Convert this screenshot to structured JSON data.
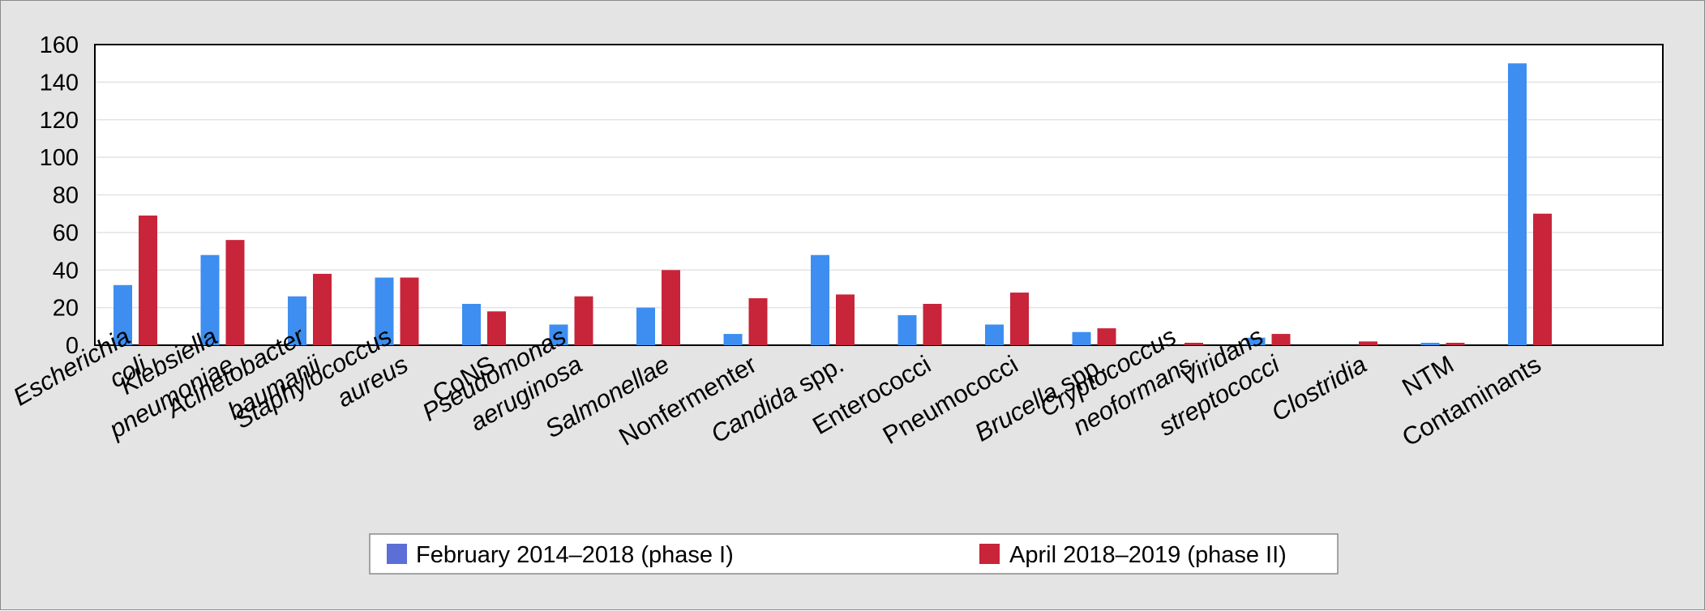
{
  "chart_data": {
    "type": "bar",
    "categories": [
      {
        "lines": [
          {
            "parts": [
              {
                "text": "Escherichia",
                "italic": true
              }
            ]
          },
          {
            "parts": [
              {
                "text": "coli",
                "italic": true
              }
            ]
          }
        ]
      },
      {
        "lines": [
          {
            "parts": [
              {
                "text": "Klebsiella",
                "italic": true
              }
            ]
          },
          {
            "parts": [
              {
                "text": "pneumoniae",
                "italic": true
              }
            ]
          }
        ]
      },
      {
        "lines": [
          {
            "parts": [
              {
                "text": "Acinetobacter",
                "italic": true
              }
            ]
          },
          {
            "parts": [
              {
                "text": "baumanii",
                "italic": true
              }
            ]
          }
        ]
      },
      {
        "lines": [
          {
            "parts": [
              {
                "text": "Staphylococcus",
                "italic": true
              }
            ]
          },
          {
            "parts": [
              {
                "text": "aureus",
                "italic": true
              }
            ]
          }
        ]
      },
      {
        "lines": [
          {
            "parts": [
              {
                "text": "CoNS",
                "italic": false
              }
            ]
          }
        ]
      },
      {
        "lines": [
          {
            "parts": [
              {
                "text": "Pseudomonas",
                "italic": true
              }
            ]
          },
          {
            "parts": [
              {
                "text": "aeruginosa",
                "italic": true
              }
            ]
          }
        ]
      },
      {
        "lines": [
          {
            "parts": [
              {
                "text": "Salmonellae",
                "italic": true
              }
            ]
          }
        ]
      },
      {
        "lines": [
          {
            "parts": [
              {
                "text": "Nonfermenter",
                "italic": false
              }
            ]
          }
        ]
      },
      {
        "lines": [
          {
            "parts": [
              {
                "text": "Candida",
                "italic": true
              },
              {
                "text": " spp.",
                "italic": false
              }
            ]
          }
        ]
      },
      {
        "lines": [
          {
            "parts": [
              {
                "text": "Enterococci",
                "italic": false
              }
            ]
          }
        ]
      },
      {
        "lines": [
          {
            "parts": [
              {
                "text": "Pneumococci",
                "italic": false
              }
            ]
          }
        ]
      },
      {
        "lines": [
          {
            "parts": [
              {
                "text": "Brucella",
                "italic": true
              },
              {
                "text": " spp.",
                "italic": false
              }
            ]
          }
        ]
      },
      {
        "lines": [
          {
            "parts": [
              {
                "text": "Cryptococcus",
                "italic": true
              }
            ]
          },
          {
            "parts": [
              {
                "text": "neoformans",
                "italic": true
              }
            ]
          }
        ]
      },
      {
        "lines": [
          {
            "parts": [
              {
                "text": "Viridans",
                "italic": true
              }
            ]
          },
          {
            "parts": [
              {
                "text": "streptococci",
                "italic": true
              }
            ]
          }
        ]
      },
      {
        "lines": [
          {
            "parts": [
              {
                "text": "Clostridia",
                "italic": true
              }
            ]
          }
        ]
      },
      {
        "lines": [
          {
            "parts": [
              {
                "text": "NTM",
                "italic": false
              }
            ]
          }
        ]
      },
      {
        "lines": [
          {
            "parts": [
              {
                "text": "Contaminants",
                "italic": false
              }
            ]
          }
        ]
      }
    ],
    "series": [
      {
        "name": "February 2014–2018 (phase I)",
        "color": "#3d8ef0",
        "legend_color": "#5b6fd6",
        "values": [
          32,
          48,
          26,
          36,
          22,
          11,
          20,
          6,
          48,
          16,
          11,
          7,
          0,
          4,
          0,
          1,
          150
        ]
      },
      {
        "name": "April 2018–2019 (phase II)",
        "color": "#c8243a",
        "legend_color": "#c8243a",
        "values": [
          69,
          56,
          38,
          36,
          18,
          26,
          40,
          25,
          27,
          22,
          28,
          9,
          1,
          6,
          2,
          1,
          70
        ]
      }
    ],
    "ylim": [
      0,
      160
    ],
    "yticks": [
      "0",
      "20",
      "40",
      "60",
      "80",
      "100",
      "120",
      "140",
      "160"
    ],
    "grid": true,
    "legend_position": "bottom-center",
    "title": "",
    "xlabel": "",
    "ylabel": ""
  }
}
